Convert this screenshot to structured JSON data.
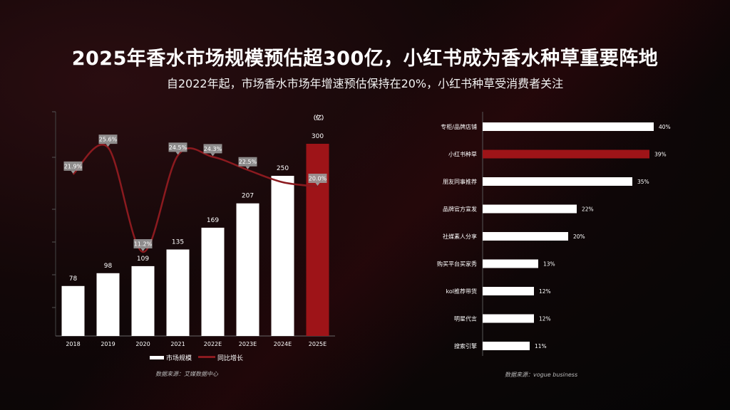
{
  "title": "2025年香水市场规模预估超300亿，小红书成为香水种草重要阵地",
  "subtitle": "自2022年起，市场香水市场年增速预估保持在20%，小红书种草受消费者关注",
  "colors": {
    "bar": "#ffffff",
    "highlight": "#9e1418",
    "line": "#8b1a1f",
    "label_box": "#9a9a9a"
  },
  "chart_data": [
    {
      "type": "bar",
      "unit_label": "（亿）",
      "categories": [
        "2018",
        "2019",
        "2020",
        "2021",
        "2022E",
        "2023E",
        "2024E",
        "2025E"
      ],
      "series": [
        {
          "name": "市场规模",
          "type": "bar",
          "values": [
            78,
            98,
            109,
            135,
            169,
            207,
            250,
            300
          ]
        },
        {
          "name": "同比增长",
          "type": "line",
          "values": [
            21.9,
            25.6,
            11.2,
            24.5,
            24.3,
            22.5,
            null,
            20.0
          ],
          "labels": [
            "21.9%",
            "25.6%",
            "11.2%",
            "24.5%",
            "24.3%",
            "22.5%",
            "",
            "20.0%"
          ]
        }
      ],
      "highlight_category": "2025E",
      "legend": [
        "市场规模",
        "同比增长"
      ],
      "legend_position": "bottom",
      "source": "数据来源：艾媒数据中心"
    },
    {
      "type": "bar",
      "orientation": "horizontal",
      "categories": [
        "专柜/品牌店铺",
        "小红书种草",
        "朋友同事推荐",
        "品牌官方宣发",
        "社媒素人分享",
        "购买平台买家秀",
        "kol推荐带货",
        "明星代言",
        "搜索引擎"
      ],
      "values": [
        40,
        39,
        35,
        22,
        20,
        13,
        12,
        12,
        11
      ],
      "labels": [
        "40%",
        "39%",
        "35%",
        "22%",
        "20%",
        "13%",
        "12%",
        "12%",
        "11%"
      ],
      "highlight_category": "小红书种草",
      "source": "数据来源：vogue business"
    }
  ]
}
